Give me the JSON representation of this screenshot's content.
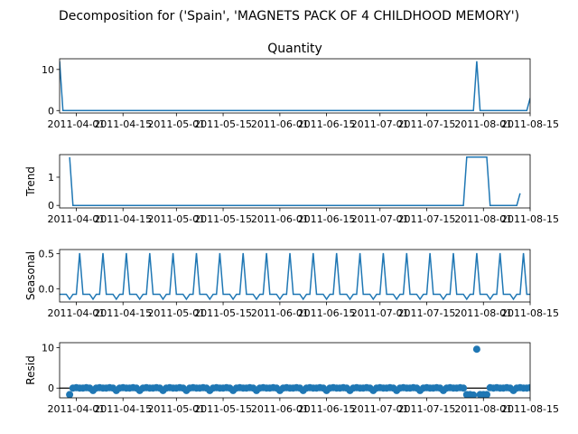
{
  "chart_data": {
    "type": "line",
    "figure_title": "Decomposition for ('Spain', 'MAGNETS PACK OF 4 CHILDHOOD MEMORY')",
    "series_color": "#1f77b4",
    "x_start": "2011-03-27",
    "x_end": "2011-08-15",
    "xtick_labels": [
      "2011-04-01",
      "2011-04-15",
      "2011-05-01",
      "2011-05-15",
      "2011-06-01",
      "2011-06-15",
      "2011-07-01",
      "2011-07-15",
      "2011-08-01",
      "2011-08-15"
    ],
    "panels": [
      {
        "name": "observed",
        "title": "Quantity",
        "ylabel": "",
        "kind": "line",
        "ylim": [
          -0.6,
          12.6
        ],
        "yticks": [
          0,
          10
        ],
        "points": [
          [
            "2011-03-27",
            12
          ],
          [
            "2011-03-28",
            0
          ],
          [
            "2011-07-29",
            0
          ],
          [
            "2011-07-30",
            12
          ],
          [
            "2011-07-31",
            0
          ],
          [
            "2011-08-14",
            0
          ],
          [
            "2011-08-15",
            3
          ]
        ]
      },
      {
        "name": "trend",
        "title": "",
        "ylabel": "Trend",
        "kind": "line",
        "ylim": [
          -0.09,
          1.8
        ],
        "yticks": [
          0,
          1
        ],
        "points": [
          [
            "2011-03-30",
            1.71
          ],
          [
            "2011-03-31",
            0
          ],
          [
            "2011-07-26",
            0
          ],
          [
            "2011-07-27",
            1.71
          ],
          [
            "2011-08-02",
            1.71
          ],
          [
            "2011-08-03",
            0
          ],
          [
            "2011-08-11",
            0
          ],
          [
            "2011-08-12",
            0.43
          ]
        ]
      },
      {
        "name": "seasonal",
        "title": "",
        "ylabel": "Seasonal",
        "kind": "seasonal",
        "ylim": [
          -0.19,
          0.56
        ],
        "yticks": [
          0.0,
          0.5
        ],
        "pattern": [
          -0.08,
          -0.08,
          -0.08,
          -0.15,
          -0.08,
          -0.08,
          0.51
        ],
        "anchor": "2011-03-27"
      },
      {
        "name": "resid",
        "title": "",
        "ylabel": "Resid",
        "kind": "scatter",
        "ylim": [
          -2.4,
          11.2
        ],
        "yticks": [
          0,
          10
        ],
        "zero_line": true,
        "points": [
          [
            "2011-03-30",
            -1.6
          ],
          [
            "2011-07-27",
            -1.6
          ],
          [
            "2011-07-28",
            -1.6
          ],
          [
            "2011-07-29",
            -1.7
          ],
          [
            "2011-07-30",
            9.6
          ],
          [
            "2011-07-31",
            -1.6
          ],
          [
            "2011-08-01",
            -1.6
          ],
          [
            "2011-08-02",
            -1.6
          ],
          [
            "2011-08-03",
            0.1
          ]
        ],
        "base_scatter": [
          0.0,
          0.1,
          0.0,
          -0.6,
          0.0,
          0.1,
          0.0
        ]
      }
    ]
  }
}
